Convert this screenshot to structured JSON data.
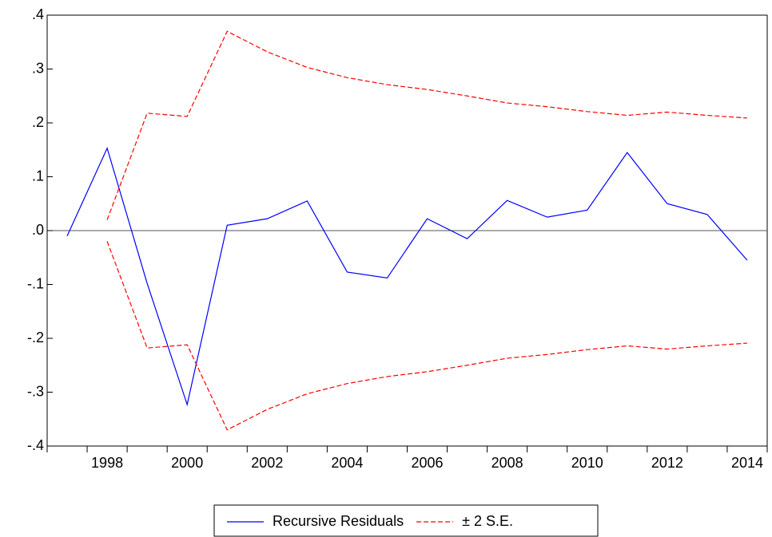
{
  "chart_data": {
    "type": "line",
    "categories": [
      null,
      "1998",
      null,
      "2000",
      null,
      "2002",
      null,
      "2004",
      null,
      "2006",
      null,
      "2008",
      null,
      "2010",
      null,
      "2012",
      null,
      "2014"
    ],
    "series": [
      {
        "name": "Recursive Residuals",
        "color": "#0000ff",
        "values": [
          -0.01,
          0.153,
          -0.098,
          -0.323,
          0.01,
          0.022,
          0.055,
          -0.077,
          -0.088,
          0.022,
          -0.015,
          0.056,
          0.025,
          0.038,
          0.145,
          0.05,
          0.03,
          -0.055
        ]
      },
      {
        "name": "± 2 S.E.",
        "color": "#ff0000",
        "dashed": true,
        "values": [
          null,
          0.02,
          0.218,
          0.212,
          0.37,
          0.332,
          0.303,
          0.284,
          0.271,
          0.262,
          0.25,
          0.237,
          0.23,
          0.221,
          0.214,
          0.22,
          0.214,
          0.209
        ],
        "lower": [
          null,
          -0.02,
          -0.218,
          -0.212,
          -0.37,
          -0.332,
          -0.303,
          -0.284,
          -0.271,
          -0.262,
          -0.25,
          -0.237,
          -0.23,
          -0.221,
          -0.214,
          -0.22,
          -0.214,
          -0.209
        ]
      }
    ],
    "ylim": [
      -0.4,
      0.4
    ],
    "yticks": [
      {
        "value": -0.4,
        "label": "-.4"
      },
      {
        "value": -0.3,
        "label": "-.3"
      },
      {
        "value": -0.2,
        "label": "-.2"
      },
      {
        "value": -0.1,
        "label": "-.1"
      },
      {
        "value": 0,
        "label": ".0"
      },
      {
        "value": 0.1,
        "label": ".1"
      },
      {
        "value": 0.2,
        "label": ".2"
      },
      {
        "value": 0.3,
        "label": ".3"
      },
      {
        "value": 0.4,
        "label": ".4"
      }
    ],
    "grid": false,
    "zero_line": true
  }
}
